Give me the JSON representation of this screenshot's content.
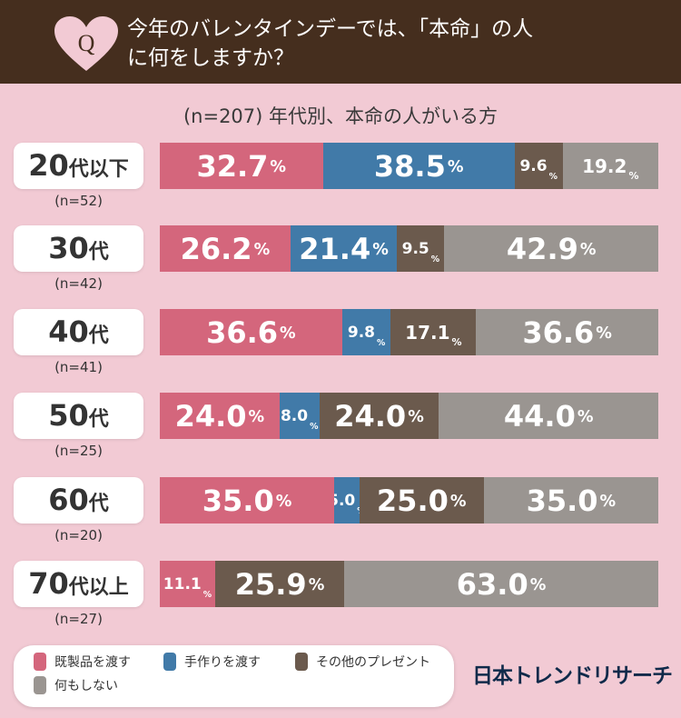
{
  "question": {
    "badge": "Q",
    "line1": "今年のバレンタインデーでは、「本命」の人",
    "line2": "に何をしますか？"
  },
  "brand": "日本トレンドリサーチ",
  "chart_data": {
    "type": "bar",
    "stacked": true,
    "orientation": "horizontal",
    "title": "(n=207) 年代別、本命の人がいる方",
    "series": [
      {
        "name": "既製品を渡す",
        "color": "#d4667c"
      },
      {
        "name": "手作りを渡す",
        "color": "#417aa8"
      },
      {
        "name": "その他のプレゼント",
        "color": "#6b5a4d"
      },
      {
        "name": "何もしない",
        "color": "#9a9591"
      }
    ],
    "categories": [
      {
        "label": "20",
        "suffix": "代以下",
        "n": "(n=52)",
        "values": [
          32.7,
          38.5,
          9.6,
          19.2
        ]
      },
      {
        "label": "30",
        "suffix": "代",
        "n": "(n=42)",
        "values": [
          26.2,
          21.4,
          9.5,
          42.9
        ]
      },
      {
        "label": "40",
        "suffix": "代",
        "n": "(n=41)",
        "values": [
          36.6,
          9.8,
          17.1,
          36.6
        ]
      },
      {
        "label": "50",
        "suffix": "代",
        "n": "(n=25)",
        "values": [
          24.0,
          8.0,
          24.0,
          44.0
        ]
      },
      {
        "label": "60",
        "suffix": "代",
        "n": "(n=20)",
        "values": [
          35.0,
          5.0,
          25.0,
          35.0
        ]
      },
      {
        "label": "70",
        "suffix": "代以上",
        "n": "(n=27)",
        "values": [
          11.1,
          0,
          25.9,
          63.0
        ]
      }
    ],
    "unit": "%",
    "xlim": [
      0,
      100
    ],
    "legend": "bottom-left"
  }
}
